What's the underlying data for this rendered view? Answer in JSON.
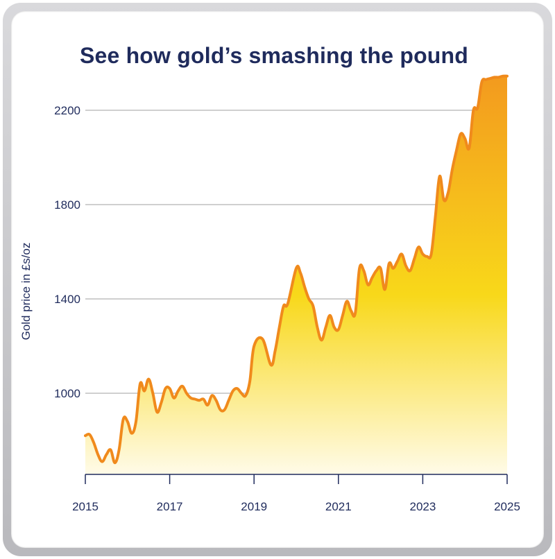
{
  "chart_data": {
    "type": "area",
    "title": "See how gold’s smashing the pound",
    "ylabel": "Gold price in £s/oz",
    "xlabel": "",
    "xlim": [
      2015,
      2025
    ],
    "ylim": [
      660,
      2350
    ],
    "yticks": [
      1000,
      1400,
      1800,
      2200
    ],
    "xticks": [
      2015,
      2017,
      2019,
      2021,
      2023,
      2025
    ],
    "grid": "horizontal",
    "colors": {
      "line": "#f08a1c",
      "fill_top": "#f39a1e",
      "fill_mid": "#f8d81a",
      "fill_bottom": "#fffbe8",
      "text": "#1f2b5c",
      "grid": "#cfcfcf"
    },
    "series": [
      {
        "x": [
          2015.0,
          2015.1,
          2015.2,
          2015.3,
          2015.4,
          2015.5,
          2015.6,
          2015.7,
          2015.8,
          2015.9,
          2016.0,
          2016.1,
          2016.2,
          2016.3,
          2016.4,
          2016.5,
          2016.6,
          2016.7,
          2016.8,
          2016.9,
          2017.0,
          2017.1,
          2017.2,
          2017.3,
          2017.4,
          2017.5,
          2017.6,
          2017.7,
          2017.8,
          2017.9,
          2018.0,
          2018.1,
          2018.2,
          2018.3,
          2018.4,
          2018.5,
          2018.6,
          2018.7,
          2018.8,
          2018.9,
          2019.0,
          2019.2,
          2019.4,
          2019.5,
          2019.6,
          2019.7,
          2019.8,
          2020.0,
          2020.1,
          2020.2,
          2020.3,
          2020.4,
          2020.5,
          2020.6,
          2020.7,
          2020.8,
          2020.9,
          2021.0,
          2021.1,
          2021.2,
          2021.3,
          2021.4,
          2021.5,
          2021.6,
          2021.7,
          2021.8,
          2021.9,
          2022.0,
          2022.1,
          2022.2,
          2022.3,
          2022.4,
          2022.5,
          2022.6,
          2022.7,
          2022.8,
          2022.9,
          2023.0,
          2023.1,
          2023.2,
          2023.3,
          2023.4,
          2023.5,
          2023.6,
          2023.7,
          2023.8,
          2023.9,
          2024.0,
          2024.1,
          2024.2,
          2024.3,
          2024.4,
          2024.5,
          2024.6,
          2024.7,
          2024.8,
          2024.9,
          2025.0
        ],
        "y": [
          820,
          825,
          790,
          740,
          710,
          740,
          760,
          705,
          760,
          890,
          880,
          830,
          880,
          1040,
          1010,
          1060,
          1000,
          920,
          960,
          1020,
          1020,
          980,
          1010,
          1030,
          1000,
          980,
          975,
          970,
          975,
          950,
          990,
          970,
          930,
          930,
          970,
          1010,
          1020,
          1000,
          990,
          1050,
          1200,
          1230,
          1120,
          1180,
          1280,
          1370,
          1380,
          1530,
          1510,
          1450,
          1400,
          1370,
          1280,
          1225,
          1280,
          1330,
          1280,
          1270,
          1330,
          1390,
          1350,
          1340,
          1530,
          1520,
          1460,
          1490,
          1520,
          1530,
          1440,
          1550,
          1530,
          1560,
          1590,
          1540,
          1520,
          1570,
          1620,
          1590,
          1580,
          1590,
          1750,
          1920,
          1820,
          1850,
          1950,
          2030,
          2100,
          2080,
          2040,
          2200,
          2210,
          2320,
          2330,
          2335,
          2340,
          2340,
          2345,
          2345
        ]
      }
    ]
  }
}
